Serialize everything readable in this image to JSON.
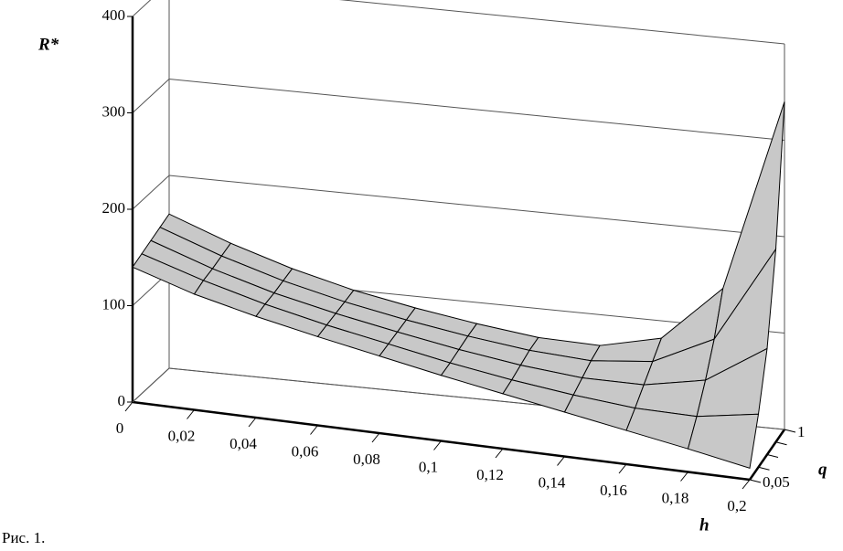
{
  "chart_data": {
    "type": "surface",
    "zlabel": "R*",
    "xlabel": "h",
    "ylabel": "q",
    "x": [
      0,
      0.02,
      0.04,
      0.06,
      0.08,
      0.1,
      0.12,
      0.14,
      0.16,
      0.18,
      0.2
    ],
    "xlim": [
      0,
      0.2
    ],
    "xticks": [
      0,
      {
        "value": 0.02,
        "label": "0,02"
      },
      {
        "value": 0.04,
        "label": "0,04"
      },
      {
        "value": 0.06,
        "label": "0,06"
      },
      {
        "value": 0.08,
        "label": "0,08"
      },
      {
        "value": 0.1,
        "label": "0,1"
      },
      {
        "value": 0.12,
        "label": "0,12"
      },
      {
        "value": 0.14,
        "label": "0,14"
      },
      {
        "value": 0.16,
        "label": "0,16"
      },
      {
        "value": 0.18,
        "label": "0,18"
      },
      {
        "value": 0.2,
        "label": "0,2"
      }
    ],
    "ycategories": [
      "0,05",
      null,
      null,
      null,
      "1"
    ],
    "zlim": [
      0,
      400
    ],
    "zticks": [
      0,
      100,
      200,
      300,
      400
    ],
    "z": [
      [
        140,
        120,
        105,
        92,
        80,
        68,
        57,
        46,
        35,
        24,
        12
      ],
      [
        145,
        125,
        108,
        94,
        82,
        70,
        60,
        52,
        46,
        45,
        55
      ],
      [
        150,
        128,
        110,
        96,
        84,
        73,
        64,
        58,
        58,
        70,
        110
      ],
      [
        155,
        132,
        113,
        98,
        86,
        76,
        68,
        64,
        70,
        100,
        200
      ],
      [
        160,
        136,
        116,
        100,
        88,
        78,
        70,
        68,
        82,
        140,
        340
      ]
    ],
    "color": "#e6e6e6",
    "grid": true
  },
  "caption": "Рис. 1."
}
